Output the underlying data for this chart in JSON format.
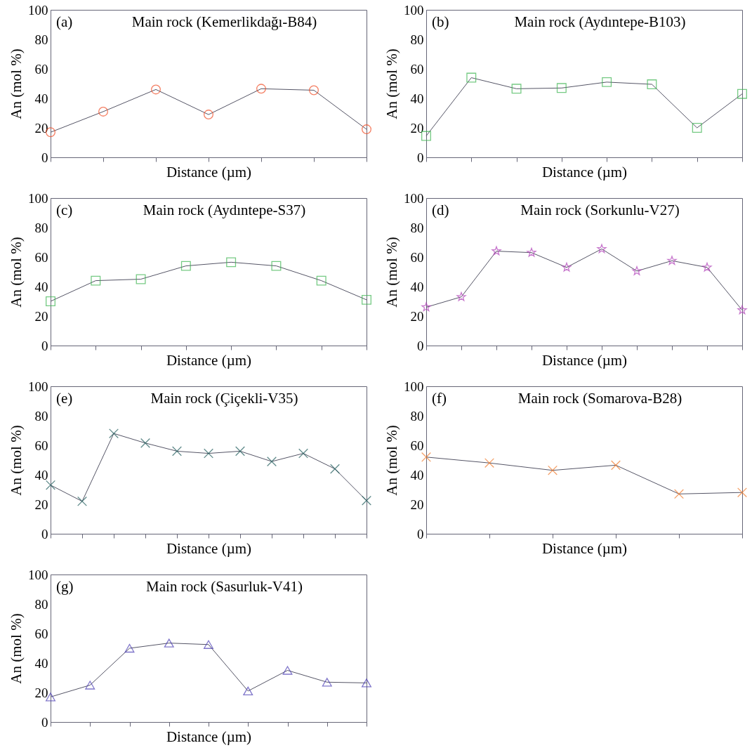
{
  "chart_data": [
    {
      "type": "line",
      "title": "Main rock (Kemerlikdağı-B84)",
      "annotations": [
        "(a)"
      ],
      "xlabel": "Distance (µm)",
      "ylabel": "An (mol %)",
      "categories": [
        null,
        null,
        null,
        null,
        null,
        null,
        null
      ],
      "series": [
        {
          "color": "#f04a22",
          "values": [
            17,
            31,
            46,
            29,
            46.5,
            45.5,
            19
          ]
        }
      ],
      "ylim": [
        0,
        100
      ],
      "yticks": [
        0,
        20,
        40,
        60,
        80,
        100
      ],
      "marker": "circle",
      "tick_labels": "y"
    },
    {
      "type": "line",
      "title": "Main rock (Aydıntepe-B103)",
      "annotations": [
        "(b)"
      ],
      "xlabel": "Distance (µm)",
      "ylabel": "An (mol %)",
      "categories": [
        null,
        null,
        null,
        null,
        null,
        null,
        null,
        null
      ],
      "series": [
        {
          "color": "#3cb450",
          "values": [
            14.5,
            54,
            46.5,
            47,
            51,
            49.5,
            20,
            43
          ]
        }
      ],
      "ylim": [
        0,
        100
      ],
      "yticks": [
        0,
        20,
        40,
        60,
        80,
        100
      ],
      "marker": "square",
      "tick_labels": "y"
    },
    {
      "type": "line",
      "title": "Main rock (Aydıntepe-S37)",
      "annotations": [
        "(c)"
      ],
      "xlabel": "Distance (µm)",
      "ylabel": "An (mol %)",
      "categories": [
        null,
        null,
        null,
        null,
        null,
        null,
        null,
        null
      ],
      "series": [
        {
          "color": "#3cb450",
          "values": [
            30,
            44,
            45,
            54,
            56.5,
            54,
            44,
            31
          ]
        }
      ],
      "ylim": [
        0,
        100
      ],
      "yticks": [
        0,
        20,
        40,
        60,
        80,
        100
      ],
      "marker": "square",
      "tick_labels": "y"
    },
    {
      "type": "line",
      "title": "Main rock (Sorkunlu-V27)",
      "annotations": [
        "(d)"
      ],
      "xlabel": "Distance (µm)",
      "ylabel": "An (mol %)",
      "categories": [
        null,
        null,
        null,
        null,
        null,
        null,
        null,
        null,
        null,
        null
      ],
      "series": [
        {
          "color": "#b040b8",
          "values": [
            26,
            33,
            64,
            63,
            53,
            65.5,
            50.5,
            57.5,
            53,
            24
          ]
        }
      ],
      "ylim": [
        0,
        100
      ],
      "yticks": [
        0,
        20,
        40,
        60,
        80,
        100
      ],
      "marker": "star",
      "tick_labels": "y"
    },
    {
      "type": "line",
      "title": "Main rock (Çiçekli-V35)",
      "annotations": [
        "(e)"
      ],
      "xlabel": "Distance (µm)",
      "ylabel": "An (mol %)",
      "categories": [
        null,
        null,
        null,
        null,
        null,
        null,
        null,
        null,
        null,
        null,
        null
      ],
      "series": [
        {
          "color": "#1e5a5a",
          "values": [
            33,
            22,
            68,
            61.5,
            56,
            54.5,
            56,
            49,
            54.5,
            44,
            22.5
          ]
        }
      ],
      "ylim": [
        0,
        100
      ],
      "yticks": [
        0,
        20,
        40,
        60,
        80,
        100
      ],
      "marker": "cross",
      "tick_labels": "y"
    },
    {
      "type": "line",
      "title": "Main rock (Somarova-B28)",
      "annotations": [
        "(f)"
      ],
      "xlabel": "Distance (µm)",
      "ylabel": "An (mol %)",
      "categories": [
        null,
        null,
        null,
        null,
        null,
        null
      ],
      "series": [
        {
          "color": "#f07828",
          "values": [
            52,
            48,
            43,
            46.5,
            27,
            28
          ]
        }
      ],
      "ylim": [
        0,
        100
      ],
      "yticks": [
        0,
        20,
        40,
        60,
        80,
        100
      ],
      "marker": "cross",
      "tick_labels": "y"
    },
    {
      "type": "line",
      "title": "Main rock (Sasurluk-V41)",
      "annotations": [
        "(g)"
      ],
      "xlabel": "Distance (µm)",
      "ylabel": "An (mol %)",
      "categories": [
        null,
        null,
        null,
        null,
        null,
        null,
        null,
        null,
        null
      ],
      "series": [
        {
          "color": "#4a3cb4",
          "values": [
            17,
            25,
            50,
            53.5,
            52.5,
            21,
            35,
            27,
            26.5
          ]
        }
      ],
      "ylim": [
        0,
        100
      ],
      "yticks": [
        0,
        20,
        40,
        60,
        80,
        100
      ],
      "marker": "triangle",
      "tick_labels": "y"
    }
  ]
}
